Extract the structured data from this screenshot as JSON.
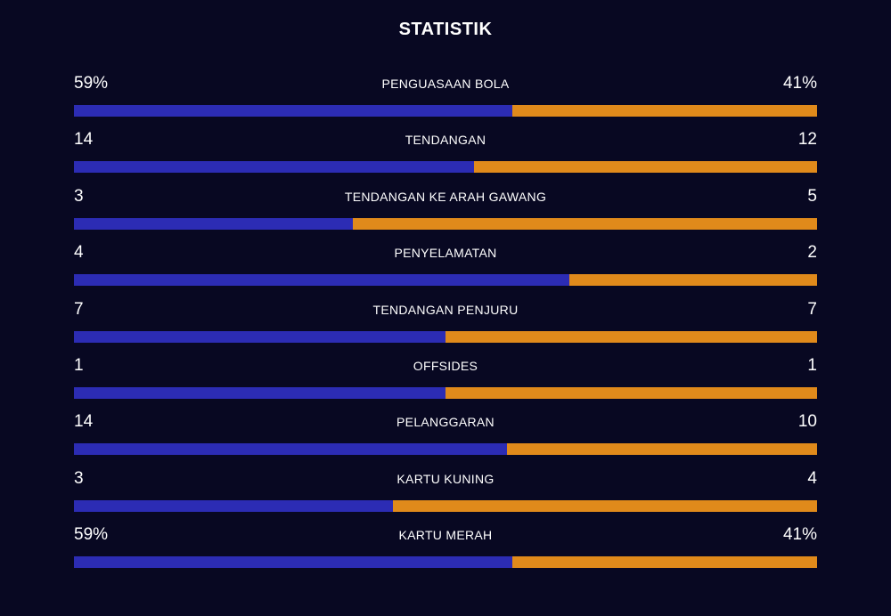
{
  "title": "STATISTIK",
  "colors": {
    "background": "#080822",
    "home": "#2c2cb4",
    "away": "#e08a1b",
    "text": "#ffffff"
  },
  "stats": [
    {
      "label": "PENGUASAAN BOLA",
      "home": "59%",
      "away": "41%",
      "home_share": 0.59
    },
    {
      "label": "TENDANGAN",
      "home": "14",
      "away": "12",
      "home_share": 0.538
    },
    {
      "label": "TENDANGAN KE ARAH GAWANG",
      "home": "3",
      "away": "5",
      "home_share": 0.375
    },
    {
      "label": "PENYELAMATAN",
      "home": "4",
      "away": "2",
      "home_share": 0.667
    },
    {
      "label": "TENDANGAN PENJURU",
      "home": "7",
      "away": "7",
      "home_share": 0.5
    },
    {
      "label": "OFFSIDES",
      "home": "1",
      "away": "1",
      "home_share": 0.5
    },
    {
      "label": "PELANGGARAN",
      "home": "14",
      "away": "10",
      "home_share": 0.583
    },
    {
      "label": "KARTU KUNING",
      "home": "3",
      "away": "4",
      "home_share": 0.429
    },
    {
      "label": "KARTU MERAH",
      "home": "59%",
      "away": "41%",
      "home_share": 0.59
    }
  ]
}
